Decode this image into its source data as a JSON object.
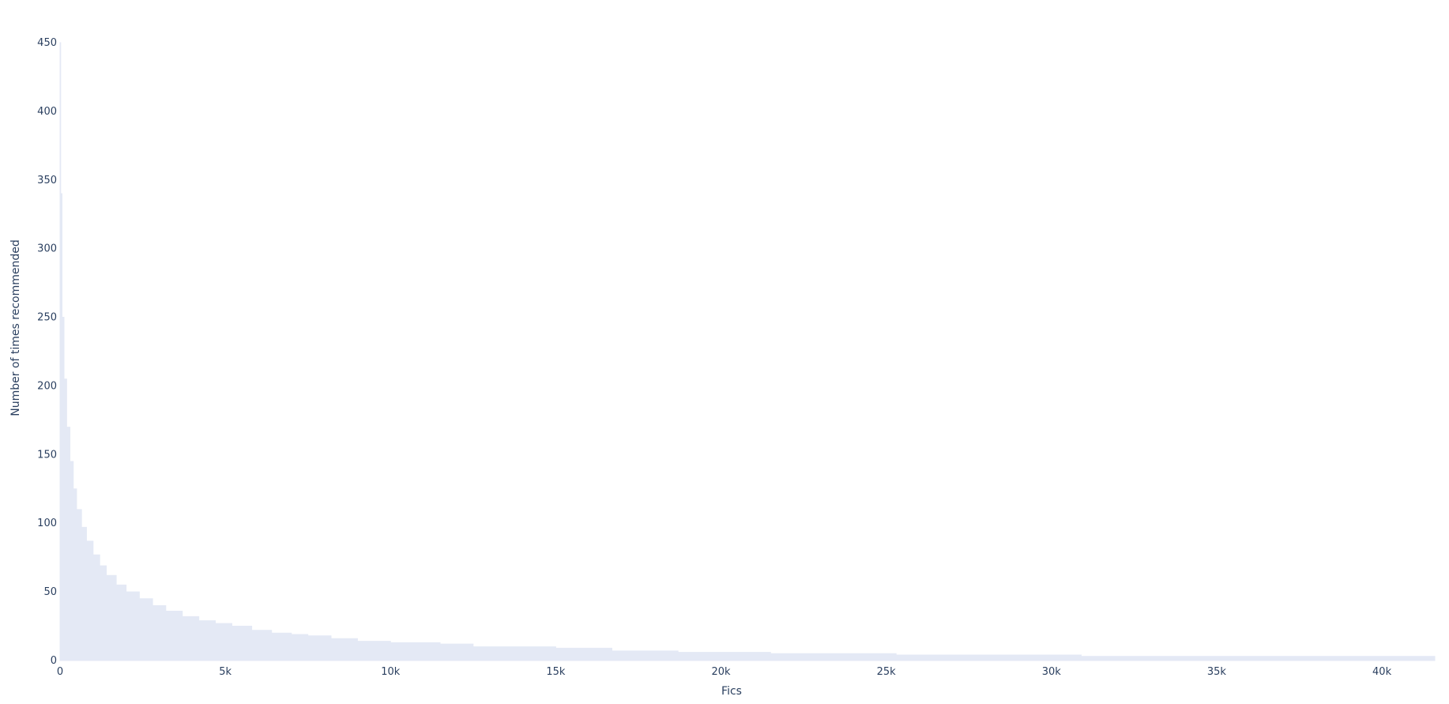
{
  "chart_data": {
    "type": "area",
    "title": "",
    "xlabel": "Fics",
    "ylabel": "Number of times recommended",
    "xlim": [
      0,
      41600
    ],
    "ylim": [
      0,
      450
    ],
    "x_ticks": [
      {
        "value": 0,
        "label": "0"
      },
      {
        "value": 5000,
        "label": "5k"
      },
      {
        "value": 10000,
        "label": "10k"
      },
      {
        "value": 15000,
        "label": "15k"
      },
      {
        "value": 20000,
        "label": "20k"
      },
      {
        "value": 25000,
        "label": "25k"
      },
      {
        "value": 30000,
        "label": "30k"
      },
      {
        "value": 35000,
        "label": "35k"
      },
      {
        "value": 40000,
        "label": "40k"
      }
    ],
    "y_ticks": [
      {
        "value": 0,
        "label": "0"
      },
      {
        "value": 50,
        "label": "50"
      },
      {
        "value": 100,
        "label": "100"
      },
      {
        "value": 150,
        "label": "150"
      },
      {
        "value": 200,
        "label": "200"
      },
      {
        "value": 250,
        "label": "250"
      },
      {
        "value": 300,
        "label": "300"
      },
      {
        "value": 350,
        "label": "350"
      },
      {
        "value": 400,
        "label": "400"
      },
      {
        "value": 450,
        "label": "450"
      }
    ],
    "grid": false,
    "legend": "none",
    "color": "#e4e9f5",
    "series": [
      {
        "x": [
          0,
          20,
          60,
          120,
          200,
          300,
          400,
          500,
          650,
          800,
          1000,
          1200,
          1400,
          1700,
          2000,
          2400,
          2800,
          3200,
          3700,
          4200,
          4700,
          5200,
          5800,
          6400,
          7000,
          7500,
          8200,
          9000,
          10000,
          11500,
          12500,
          15000,
          16700,
          18700,
          21500,
          25300,
          30900,
          41600
        ],
        "y": [
          450,
          340,
          250,
          205,
          170,
          145,
          125,
          110,
          97,
          87,
          77,
          69,
          62,
          55,
          50,
          45,
          40,
          36,
          32,
          29,
          27,
          25,
          22,
          20,
          19,
          18,
          16,
          14,
          13,
          12,
          10,
          9,
          7,
          6,
          5,
          4,
          3,
          2
        ]
      }
    ]
  }
}
